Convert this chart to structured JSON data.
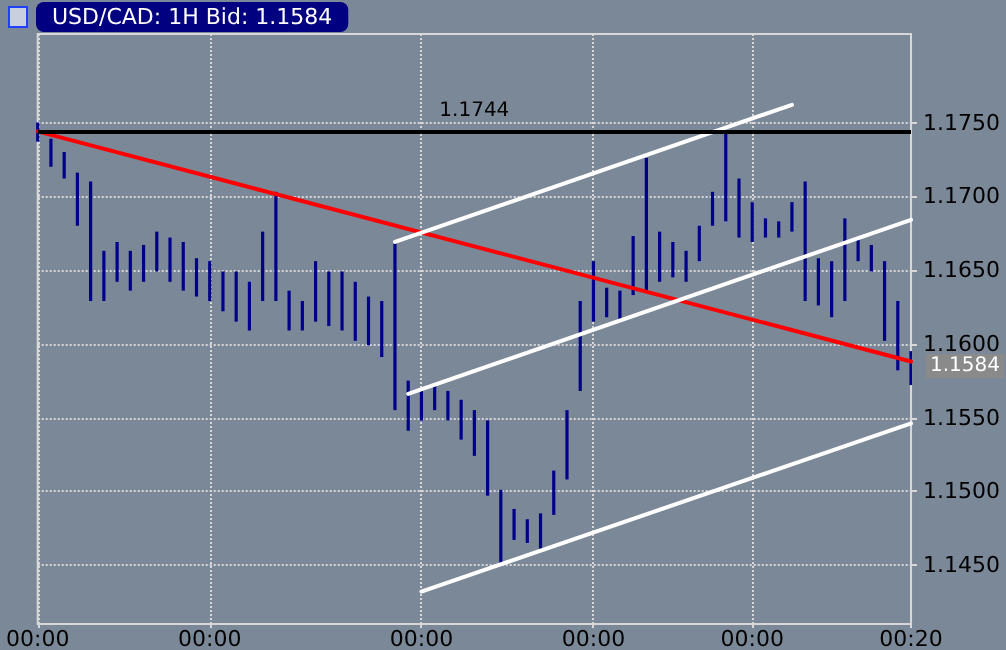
{
  "chart_data": {
    "type": "bar",
    "title": "USD/CAD: 1H Bid: 1.1584",
    "categories": [
      "00:00",
      null,
      null,
      null,
      null,
      null,
      null,
      null,
      null,
      null,
      null,
      null,
      null,
      "00:00",
      null,
      null,
      null,
      null,
      null,
      null,
      null,
      null,
      null,
      null,
      null,
      null,
      null,
      null,
      null,
      "00:00",
      null,
      null,
      null,
      null,
      null,
      null,
      null,
      null,
      null,
      null,
      null,
      null,
      "00:00",
      null,
      null,
      null,
      null,
      null,
      null,
      null,
      null,
      null,
      null,
      null,
      "00:00",
      null,
      null,
      null,
      null,
      null,
      null,
      null,
      null,
      null,
      null,
      null,
      "00:20"
    ],
    "series": [
      {
        "color": "#00008b",
        "base": [
          1.1737,
          1.172,
          1.1712,
          1.168,
          1.1629,
          1.1629,
          1.1642,
          1.1636,
          1.1642,
          1.1649,
          1.1642,
          1.1636,
          1.1632,
          1.1629,
          1.1622,
          1.1615,
          1.1609,
          1.1629,
          1.1629,
          1.1609,
          1.1609,
          1.1615,
          1.1612,
          1.1609,
          1.1602,
          1.1599,
          1.1591,
          1.1555,
          1.1541,
          1.1548,
          1.1555,
          1.1548,
          1.1535,
          1.1524,
          1.1497,
          1.1451,
          1.1467,
          1.1465,
          1.1461,
          1.1484,
          1.1508,
          1.1568,
          1.1615,
          1.1618,
          1.1615,
          1.1633,
          1.1636,
          1.1642,
          1.1645,
          1.1642,
          1.1656,
          1.168,
          1.1683,
          1.1672,
          1.1669,
          1.1672,
          1.1672,
          1.1676,
          1.1629,
          1.1626,
          1.1618,
          1.1629,
          1.1656,
          1.1649,
          1.1602,
          1.1582,
          1.1572
        ],
        "values": [
          0.0013,
          0.0019,
          0.0018,
          0.0036,
          0.0081,
          0.0034,
          0.0027,
          0.0027,
          0.0025,
          0.0027,
          0.003,
          0.0033,
          0.0026,
          0.0027,
          0.0027,
          0.0034,
          0.0033,
          0.0047,
          0.0074,
          0.0027,
          0.002,
          0.0041,
          0.0037,
          0.004,
          0.004,
          0.0033,
          0.0038,
          0.0114,
          0.0034,
          0.002,
          0.0017,
          0.002,
          0.0027,
          0.0031,
          0.0051,
          0.005,
          0.0021,
          0.0016,
          0.0024,
          0.003,
          0.0047,
          0.0061,
          0.0041,
          0.002,
          0.0021,
          0.004,
          0.009,
          0.0034,
          0.0024,
          0.0021,
          0.0024,
          0.0023,
          0.006,
          0.004,
          0.0027,
          0.0013,
          0.0011,
          0.002,
          0.0081,
          0.0032,
          0.0038,
          0.0056,
          0.0016,
          0.0018,
          0.0054,
          0.0047,
          0.0023
        ]
      },
      {
        "type": "line",
        "color": "#ff0000",
        "values": [
          1.1744,
          null,
          null,
          null,
          null,
          null,
          null,
          null,
          null,
          null,
          null,
          null,
          null,
          null,
          null,
          null,
          null,
          null,
          null,
          null,
          null,
          null,
          null,
          null,
          null,
          null,
          null,
          null,
          null,
          null,
          null,
          null,
          null,
          null,
          null,
          null,
          null,
          null,
          null,
          null,
          null,
          null,
          null,
          null,
          null,
          null,
          null,
          null,
          null,
          null,
          null,
          null,
          null,
          null,
          null,
          null,
          null,
          null,
          null,
          null,
          null,
          null,
          null,
          null,
          null,
          null,
          1.1588
        ]
      },
      {
        "type": "line",
        "color": "#ffffff",
        "values": [
          null,
          null,
          null,
          null,
          null,
          null,
          null,
          null,
          null,
          null,
          null,
          null,
          null,
          null,
          null,
          null,
          null,
          null,
          null,
          null,
          null,
          null,
          null,
          null,
          null,
          null,
          null,
          1.1669,
          null,
          null,
          null,
          null,
          null,
          null,
          null,
          null,
          null,
          null,
          null,
          null,
          null,
          null,
          null,
          null,
          null,
          null,
          null,
          null,
          null,
          null,
          null,
          null,
          null,
          null,
          null,
          null,
          null,
          1.1762,
          null,
          null,
          null,
          null,
          null,
          null,
          null,
          null,
          null
        ]
      },
      {
        "type": "line",
        "color": "#ffffff",
        "values": [
          null,
          null,
          null,
          null,
          null,
          null,
          null,
          null,
          null,
          null,
          null,
          null,
          null,
          null,
          null,
          null,
          null,
          null,
          null,
          null,
          null,
          null,
          null,
          null,
          null,
          null,
          null,
          null,
          1.1566,
          null,
          null,
          null,
          null,
          null,
          null,
          null,
          null,
          null,
          null,
          null,
          null,
          null,
          null,
          null,
          null,
          null,
          null,
          null,
          null,
          null,
          null,
          null,
          null,
          null,
          null,
          null,
          null,
          null,
          null,
          null,
          null,
          null,
          null,
          null,
          null,
          null,
          1.1684
        ]
      },
      {
        "type": "line",
        "color": "#ffffff",
        "values": [
          null,
          null,
          null,
          null,
          null,
          null,
          null,
          null,
          null,
          null,
          null,
          null,
          null,
          null,
          null,
          null,
          null,
          null,
          null,
          null,
          null,
          null,
          null,
          null,
          null,
          null,
          null,
          null,
          null,
          1.1432,
          null,
          null,
          null,
          null,
          null,
          null,
          null,
          null,
          null,
          null,
          null,
          null,
          null,
          null,
          null,
          null,
          null,
          null,
          null,
          null,
          null,
          null,
          null,
          null,
          null,
          null,
          null,
          null,
          null,
          null,
          null,
          null,
          null,
          null,
          null,
          null,
          1.1546
        ]
      }
    ],
    "ylim": [
      1.141,
      1.181
    ],
    "yticks": [
      {
        "value": 1.145,
        "label": "1.1450"
      },
      {
        "value": 1.15,
        "label": "1.1500"
      },
      {
        "value": 1.155,
        "label": "1.1550"
      },
      {
        "value": 1.16,
        "label": "1.1600"
      },
      {
        "value": 1.165,
        "label": "1.1650"
      },
      {
        "value": 1.17,
        "label": "1.1700"
      },
      {
        "value": 1.175,
        "label": "1.1750"
      }
    ],
    "ref_lines": [
      {
        "axis": "y",
        "value": 1.1744,
        "label": "1.1744",
        "color": "#000000",
        "line_style": "solid"
      }
    ],
    "annotations": [
      "1.1584"
    ],
    "grid": true,
    "marker": "none",
    "line_style": "solid"
  }
}
